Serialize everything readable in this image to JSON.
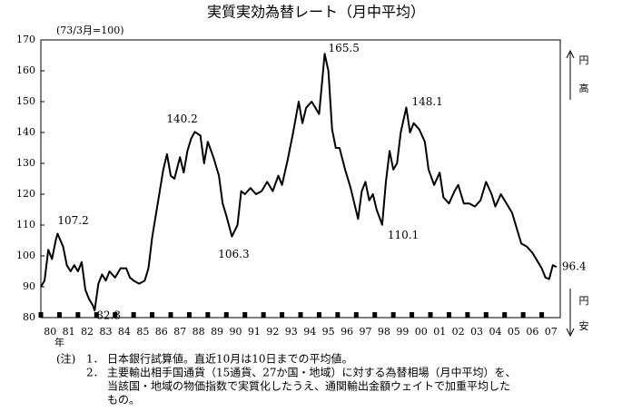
{
  "chart_data": {
    "type": "line",
    "title": "実質実効為替レート（月中平均）",
    "subtitle": "(73/3月=100)",
    "x_label": "年",
    "right_labels": {
      "up": [
        "円",
        "高"
      ],
      "down": [
        "円",
        "安"
      ]
    },
    "xlim": [
      80,
      108
    ],
    "xticks": [
      80,
      81,
      82,
      83,
      84,
      85,
      86,
      87,
      88,
      89,
      90,
      91,
      92,
      93,
      94,
      95,
      96,
      97,
      98,
      99,
      {
        "value": 100,
        "label": "00"
      },
      {
        "value": 101,
        "label": "01"
      },
      {
        "value": 102,
        "label": "02"
      },
      {
        "value": 103,
        "label": "03"
      },
      {
        "value": 104,
        "label": "04"
      },
      {
        "value": 105,
        "label": "05"
      },
      {
        "value": 106,
        "label": "06"
      },
      {
        "value": 107,
        "label": "07"
      }
    ],
    "ylim": [
      80,
      170
    ],
    "yticks": [
      80,
      90,
      100,
      110,
      120,
      130,
      140,
      150,
      160,
      170
    ],
    "color": "#000000",
    "x": [
      80.0,
      80.2,
      80.4,
      80.6,
      80.8,
      80.9,
      81.2,
      81.4,
      81.6,
      81.8,
      82.0,
      82.2,
      82.4,
      82.6,
      82.8,
      82.9,
      83.1,
      83.3,
      83.5,
      83.7,
      84.0,
      84.3,
      84.6,
      84.8,
      85.0,
      85.3,
      85.6,
      85.8,
      86.0,
      86.3,
      86.6,
      86.8,
      87.0,
      87.2,
      87.5,
      87.7,
      87.9,
      88.1,
      88.3,
      88.6,
      88.8,
      89.0,
      89.3,
      89.6,
      89.8,
      90.0,
      90.3,
      90.6,
      90.8,
      91.0,
      91.3,
      91.6,
      91.9,
      92.2,
      92.5,
      92.8,
      93.0,
      93.3,
      93.6,
      93.9,
      94.1,
      94.3,
      94.6,
      94.8,
      95.0,
      95.3,
      95.5,
      95.7,
      95.9,
      96.1,
      96.4,
      96.7,
      96.9,
      97.1,
      97.3,
      97.5,
      97.7,
      97.9,
      98.1,
      98.4,
      98.6,
      98.8,
      99.0,
      99.2,
      99.4,
      99.7,
      99.9,
      100.1,
      100.4,
      100.7,
      100.9,
      101.2,
      101.5,
      101.7,
      102.0,
      102.3,
      102.5,
      102.8,
      103.1,
      103.4,
      103.7,
      104.0,
      104.3,
      104.5,
      104.8,
      105.1,
      105.4,
      105.7,
      105.9,
      106.2,
      106.5,
      106.8,
      107.0,
      107.2,
      107.4,
      107.6,
      107.8
    ],
    "values": [
      90,
      92,
      102,
      99,
      105,
      107.2,
      103,
      97,
      95,
      97,
      95,
      98,
      89,
      86,
      84,
      82.3,
      91,
      94,
      92,
      95,
      93,
      96,
      96,
      93,
      92,
      91,
      92,
      96,
      106,
      117,
      128,
      133,
      126,
      125,
      132,
      127,
      134,
      138,
      140.2,
      139,
      130,
      137,
      132,
      126,
      117,
      113,
      106.3,
      110,
      121,
      120,
      122,
      120,
      121,
      124,
      121,
      126,
      123,
      131,
      140,
      150,
      143,
      148,
      150,
      148,
      146,
      165.5,
      160,
      141,
      135,
      135,
      128,
      122,
      117,
      112,
      121,
      124,
      118,
      120,
      115,
      110.1,
      124,
      134,
      128,
      130,
      140,
      148.1,
      140,
      143,
      141,
      137,
      128,
      123,
      127,
      119,
      117,
      121,
      123,
      117,
      117,
      116,
      118,
      124,
      120,
      116,
      120,
      117,
      114,
      108,
      104,
      103,
      101,
      98,
      96,
      93,
      92.5,
      97,
      96.4
    ],
    "annotations": [
      {
        "label": "107.2",
        "x": 80.9,
        "y": 107.2
      },
      {
        "label": "82.3",
        "x": 82.9,
        "y": 82.3
      },
      {
        "label": "140.2",
        "x": 88.3,
        "y": 140.2
      },
      {
        "label": "106.3",
        "x": 90.3,
        "y": 106.3
      },
      {
        "label": "165.5",
        "x": 95.3,
        "y": 165.5
      },
      {
        "label": "110.1",
        "x": 98.4,
        "y": 110.1
      },
      {
        "label": "148.1",
        "x": 99.7,
        "y": 148.1
      },
      {
        "label": "96.4",
        "x": 107.8,
        "y": 96.4
      }
    ],
    "notes": {
      "head": "(注)",
      "items": [
        {
          "num": "1．",
          "lines": [
            "日本銀行試算値。直近10月は10日までの平均値。"
          ]
        },
        {
          "num": "2．",
          "lines": [
            "主要輸出相手国通貨（15通貨、27か国・地域）に対する為替相場（月中平均）を、",
            "当該国・地域の物価指数で実質化したうえ、通関輸出金額ウェイトで加重平均した",
            "もの。"
          ]
        }
      ]
    }
  }
}
